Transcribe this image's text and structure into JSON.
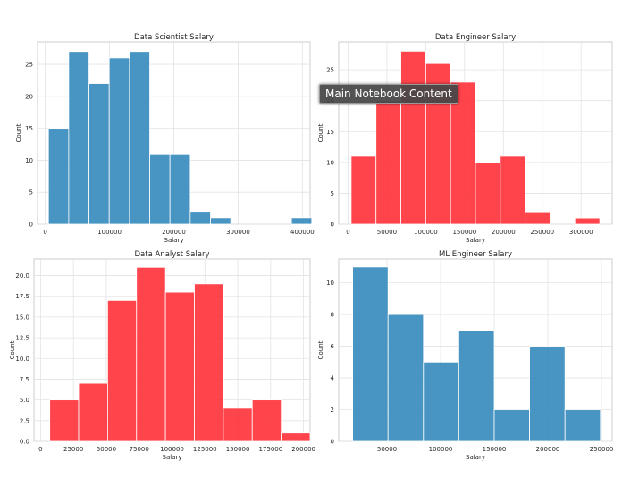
{
  "tooltip": {
    "text": "Main Notebook Content"
  },
  "chart_data": [
    {
      "type": "bar",
      "title": "Data Scientist Salary",
      "xlabel": "Salary",
      "ylabel": "Count",
      "color": "#2f86bb",
      "xlim": [
        -12000,
        412000
      ],
      "ylim": [
        0,
        28.5
      ],
      "xticks": [
        0,
        100000,
        200000,
        300000,
        400000
      ],
      "yticks": [
        0,
        5,
        10,
        15,
        20,
        25
      ],
      "ytick_labels": [
        "0",
        "5",
        "10",
        "15",
        "20",
        "25"
      ],
      "bin_edges": [
        5000,
        36500,
        68000,
        99500,
        131000,
        162500,
        194000,
        225500,
        257000,
        288500,
        320000,
        351500,
        383000,
        414500
      ],
      "values": [
        15,
        27,
        22,
        26,
        27,
        11,
        11,
        2,
        1,
        0,
        0,
        0,
        1
      ]
    },
    {
      "type": "bar",
      "title": "Data Engineer Salary",
      "xlabel": "Salary",
      "ylabel": "Count",
      "color": "#ff2a33",
      "xlim": [
        -12000,
        340000
      ],
      "ylim": [
        0,
        29.5
      ],
      "xticks": [
        0,
        50000,
        100000,
        150000,
        200000,
        250000,
        300000
      ],
      "yticks": [
        0,
        5,
        10,
        15,
        20,
        25
      ],
      "ytick_labels": [
        "0",
        "5",
        "10",
        "15",
        "20",
        "25"
      ],
      "bin_edges": [
        4000,
        36000,
        68000,
        100000,
        132000,
        164000,
        196000,
        228000,
        260000,
        292000,
        324000
      ],
      "values": [
        11,
        20,
        28,
        26,
        23,
        10,
        11,
        2,
        0,
        1
      ]
    },
    {
      "type": "bar",
      "title": "Data Analyst Salary",
      "xlabel": "Salary",
      "ylabel": "Count",
      "color": "#ff2a33",
      "xlim": [
        -5000,
        205000
      ],
      "ylim": [
        0,
        22
      ],
      "xticks": [
        0,
        25000,
        50000,
        75000,
        100000,
        125000,
        150000,
        175000,
        200000
      ],
      "yticks": [
        0,
        2.5,
        5,
        7.5,
        10,
        12.5,
        15,
        17.5,
        20
      ],
      "ytick_labels": [
        "0.0",
        "2.5",
        "5.0",
        "7.5",
        "10.0",
        "12.5",
        "15.0",
        "17.5",
        "20.0"
      ],
      "bin_edges": [
        7000,
        29000,
        51000,
        73000,
        95000,
        117000,
        139000,
        161000,
        183000,
        205000
      ],
      "values": [
        5,
        7,
        17,
        21,
        18,
        19,
        4,
        5,
        1
      ]
    },
    {
      "type": "bar",
      "title": "ML Engineer Salary",
      "xlabel": "Salary",
      "ylabel": "Count",
      "color": "#2f86bb",
      "xlim": [
        5000,
        260000
      ],
      "ylim": [
        0,
        11.5
      ],
      "xticks": [
        50000,
        100000,
        150000,
        200000,
        250000
      ],
      "yticks": [
        0,
        2,
        4,
        6,
        8,
        10
      ],
      "ytick_labels": [
        "0",
        "2",
        "4",
        "6",
        "8",
        "10"
      ],
      "bin_edges": [
        18000,
        51000,
        84000,
        117000,
        150000,
        183000,
        216000,
        249000
      ],
      "values": [
        11,
        8,
        5,
        7,
        2,
        6,
        2
      ]
    }
  ]
}
